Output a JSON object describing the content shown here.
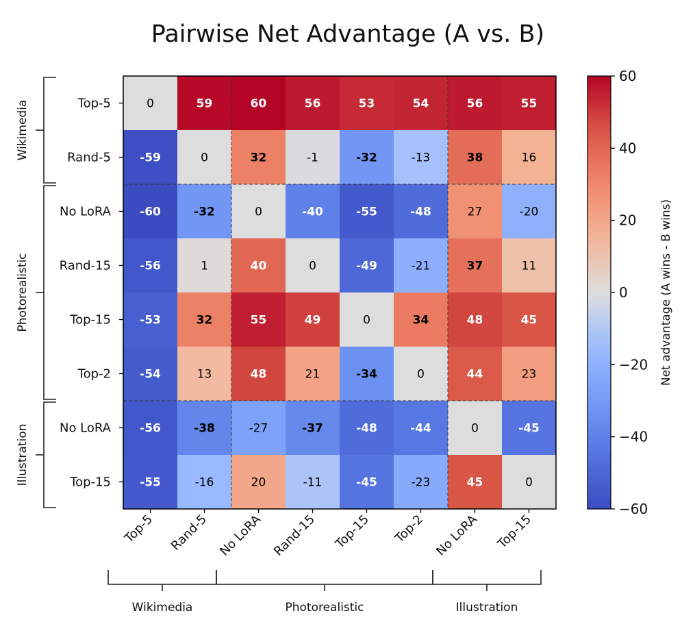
{
  "chart_data": {
    "type": "heatmap",
    "title": "Pairwise Net Advantage (A vs. B)",
    "rows": [
      "Top-5",
      "Rand-5",
      "No LoRA",
      "Rand-15",
      "Top-15",
      "Top-2",
      "No LoRA",
      "Top-15"
    ],
    "columns": [
      "Top-5",
      "Rand-5",
      "No LoRA",
      "Rand-15",
      "Top-15",
      "Top-2",
      "No LoRA",
      "Top-15"
    ],
    "values": [
      [
        0,
        59,
        60,
        56,
        53,
        54,
        56,
        55
      ],
      [
        -59,
        0,
        32,
        -1,
        -32,
        -13,
        38,
        16
      ],
      [
        -60,
        -32,
        0,
        -40,
        -55,
        -48,
        27,
        -20
      ],
      [
        -56,
        1,
        40,
        0,
        -49,
        -21,
        37,
        11
      ],
      [
        -53,
        32,
        55,
        49,
        0,
        34,
        48,
        45
      ],
      [
        -54,
        13,
        48,
        21,
        -34,
        0,
        44,
        23
      ],
      [
        -56,
        -38,
        -27,
        -37,
        -48,
        -44,
        0,
        -45
      ],
      [
        -55,
        -16,
        20,
        -11,
        -45,
        -23,
        45,
        0
      ]
    ],
    "bold_cells": [
      [
        1,
        2
      ],
      [
        1,
        4
      ],
      [
        1,
        6
      ],
      [
        2,
        1
      ],
      [
        3,
        6
      ],
      [
        4,
        1
      ],
      [
        4,
        5
      ],
      [
        5,
        4
      ],
      [
        6,
        1
      ],
      [
        6,
        3
      ]
    ],
    "row_groups": [
      {
        "label": "Wikimedia",
        "start": 0,
        "end": 1
      },
      {
        "label": "Photorealistic",
        "start": 2,
        "end": 5
      },
      {
        "label": "Illustration",
        "start": 6,
        "end": 7
      }
    ],
    "col_groups": [
      {
        "label": "Wikimedia",
        "start": 0,
        "end": 1
      },
      {
        "label": "Photorealistic",
        "start": 2,
        "end": 5
      },
      {
        "label": "Illustration",
        "start": 6,
        "end": 7
      }
    ],
    "colorbar": {
      "label": "Net advantage (A wins - B wins)",
      "min": -60,
      "max": 60,
      "ticks": [
        "60",
        "40",
        "20",
        "0",
        "−20",
        "−40",
        "−60"
      ],
      "tick_values": [
        60,
        40,
        20,
        0,
        -20,
        -40,
        -60
      ]
    },
    "colormap": "coolwarm",
    "group_separators": [
      2,
      6
    ]
  }
}
